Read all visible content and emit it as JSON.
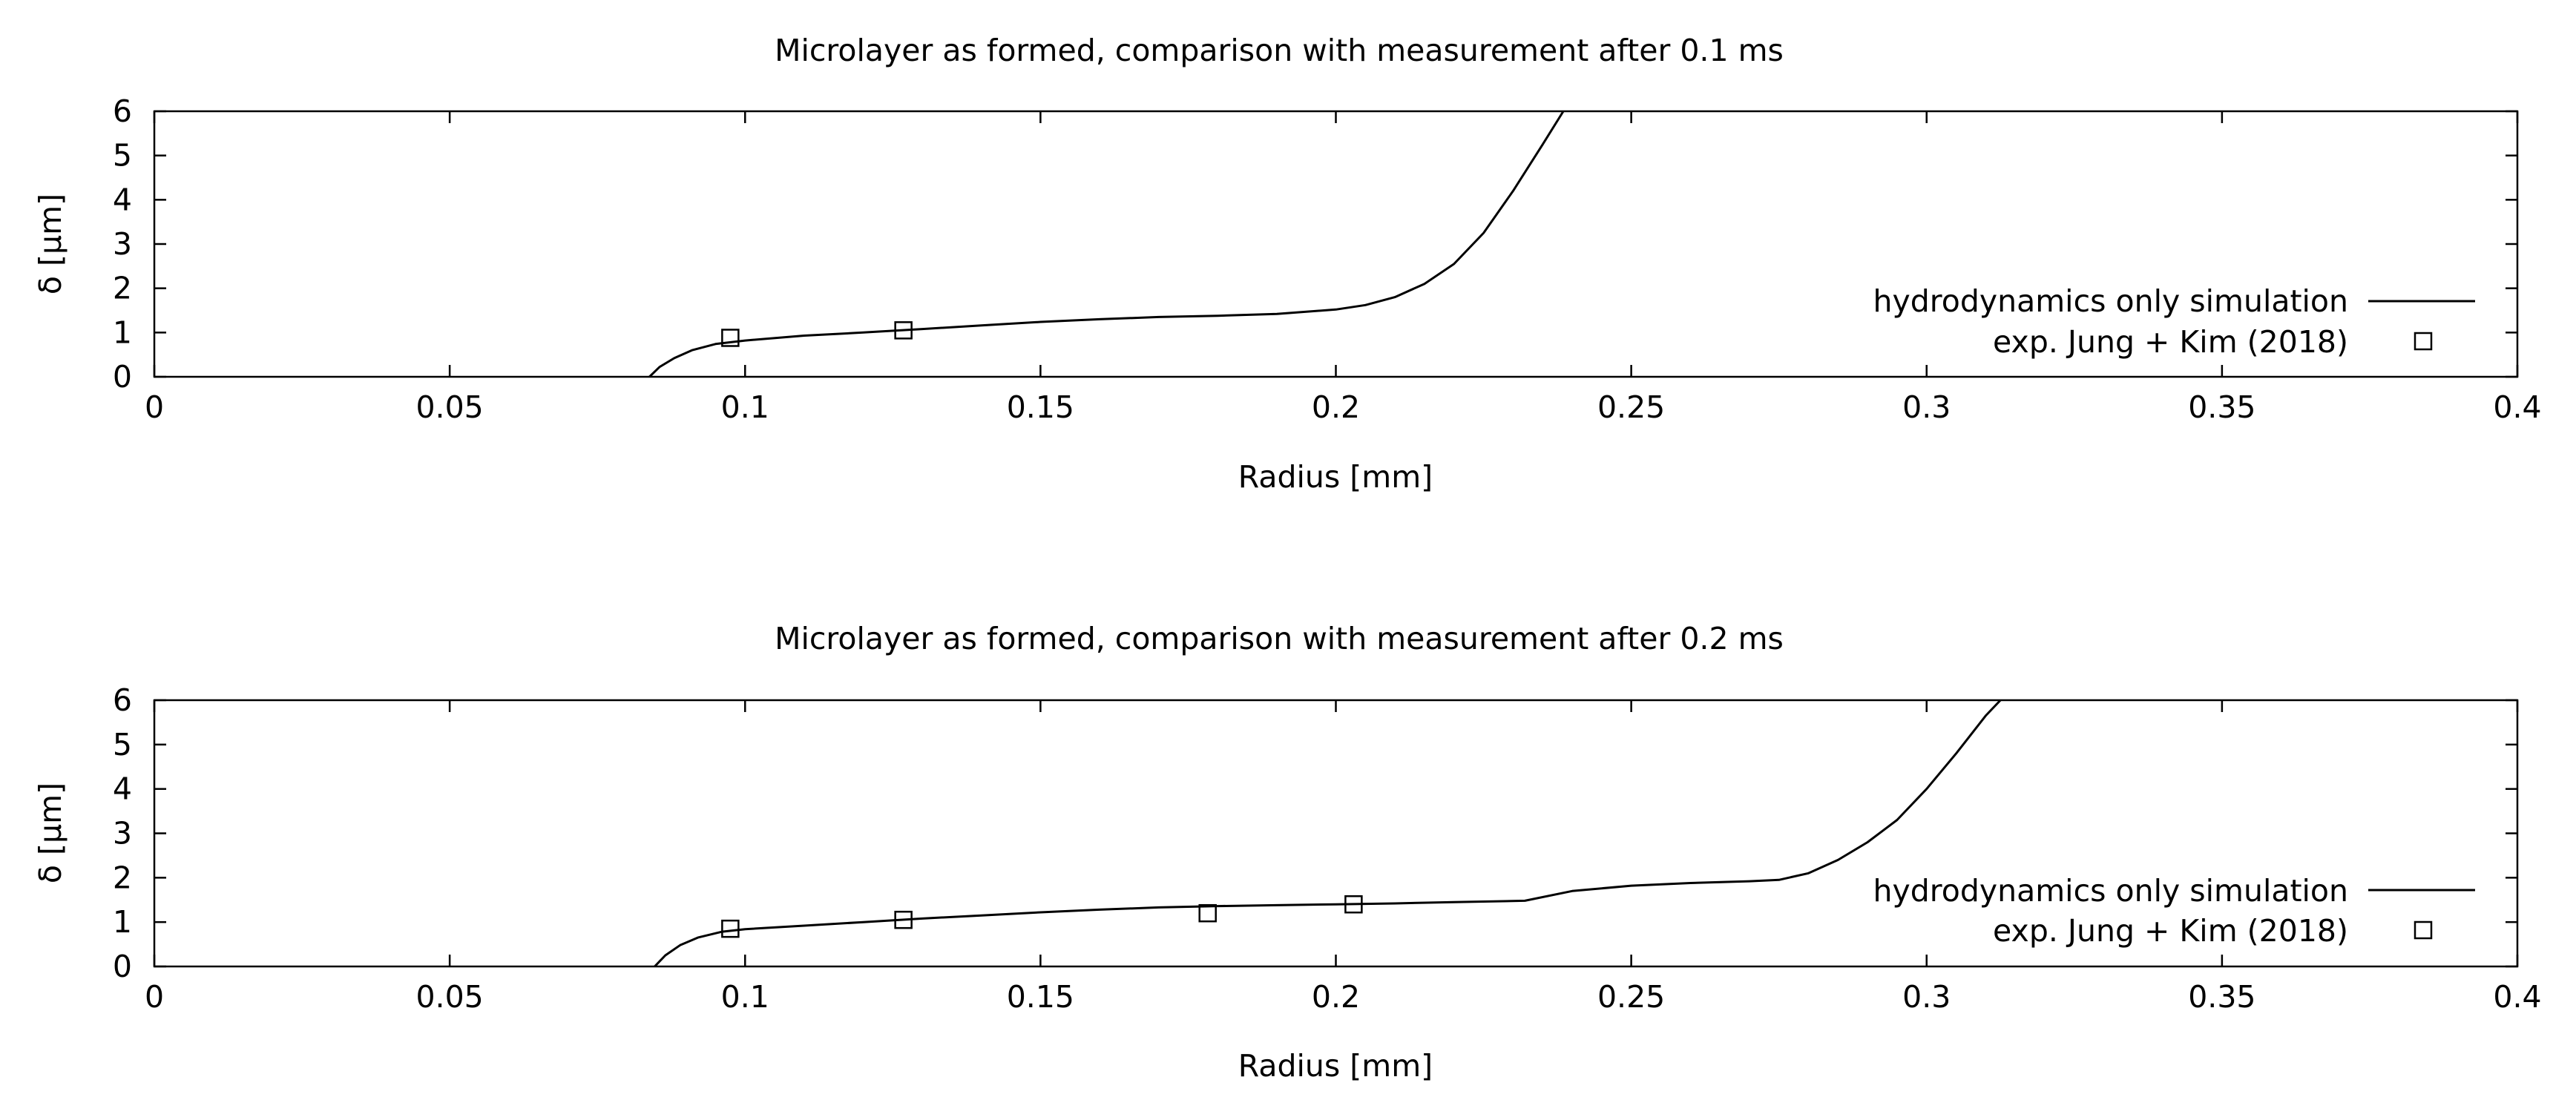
{
  "chart_data": [
    {
      "type": "line",
      "title": "Microlayer as formed, comparison with measurement after 0.1 ms",
      "xlabel": "Radius [mm]",
      "ylabel": "δ [µm]",
      "xlim": [
        0,
        0.4
      ],
      "ylim": [
        0,
        6
      ],
      "xticks": [
        "0",
        "0.05",
        "0.1",
        "0.15",
        "0.2",
        "0.25",
        "0.3",
        "0.35",
        "0.4"
      ],
      "yticks": [
        "0",
        "1",
        "2",
        "3",
        "4",
        "5",
        "6"
      ],
      "grid": false,
      "legend_position": "right",
      "series": [
        {
          "name": "hydrodynamics only simulation",
          "style": "line",
          "x": [
            0.0838,
            0.0855,
            0.088,
            0.091,
            0.095,
            0.1,
            0.11,
            0.12,
            0.13,
            0.14,
            0.15,
            0.16,
            0.17,
            0.18,
            0.19,
            0.2,
            0.205,
            0.21,
            0.215,
            0.22,
            0.225,
            0.23,
            0.235,
            0.2385
          ],
          "y": [
            0.0,
            0.22,
            0.42,
            0.6,
            0.74,
            0.82,
            0.93,
            1.0,
            1.08,
            1.16,
            1.24,
            1.3,
            1.35,
            1.38,
            1.42,
            1.52,
            1.62,
            1.8,
            2.1,
            2.55,
            3.25,
            4.2,
            5.25,
            6.0
          ]
        },
        {
          "name": "exp. Jung + Kim (2018)",
          "style": "marker",
          "x": [
            0.0975,
            0.1268
          ],
          "y": [
            0.88,
            1.05
          ]
        }
      ]
    },
    {
      "type": "line",
      "title": "Microlayer as formed, comparison with measurement after 0.2 ms",
      "xlabel": "Radius [mm]",
      "ylabel": "δ [µm]",
      "xlim": [
        0,
        0.4
      ],
      "ylim": [
        0,
        6
      ],
      "xticks": [
        "0",
        "0.05",
        "0.1",
        "0.15",
        "0.2",
        "0.25",
        "0.3",
        "0.35",
        "0.4"
      ],
      "yticks": [
        "0",
        "1",
        "2",
        "3",
        "4",
        "5",
        "6"
      ],
      "grid": false,
      "legend_position": "right",
      "series": [
        {
          "name": "hydrodynamics only simulation",
          "style": "line",
          "x": [
            0.0847,
            0.0865,
            0.089,
            0.092,
            0.096,
            0.1,
            0.11,
            0.12,
            0.13,
            0.14,
            0.15,
            0.16,
            0.17,
            0.18,
            0.19,
            0.2,
            0.21,
            0.22,
            0.232,
            0.24,
            0.25,
            0.26,
            0.27,
            0.275,
            0.28,
            0.285,
            0.29,
            0.295,
            0.3,
            0.305,
            0.31,
            0.3125
          ],
          "y": [
            0.0,
            0.25,
            0.48,
            0.65,
            0.78,
            0.84,
            0.92,
            1.0,
            1.08,
            1.15,
            1.22,
            1.28,
            1.33,
            1.36,
            1.38,
            1.4,
            1.42,
            1.45,
            1.48,
            1.7,
            1.82,
            1.88,
            1.92,
            1.95,
            2.1,
            2.4,
            2.8,
            3.3,
            4.0,
            4.8,
            5.65,
            6.0
          ]
        },
        {
          "name": "exp. Jung + Kim (2018)",
          "style": "marker",
          "x": [
            0.0975,
            0.1268,
            0.1783,
            0.203
          ],
          "y": [
            0.85,
            1.05,
            1.2,
            1.4
          ]
        }
      ]
    }
  ]
}
